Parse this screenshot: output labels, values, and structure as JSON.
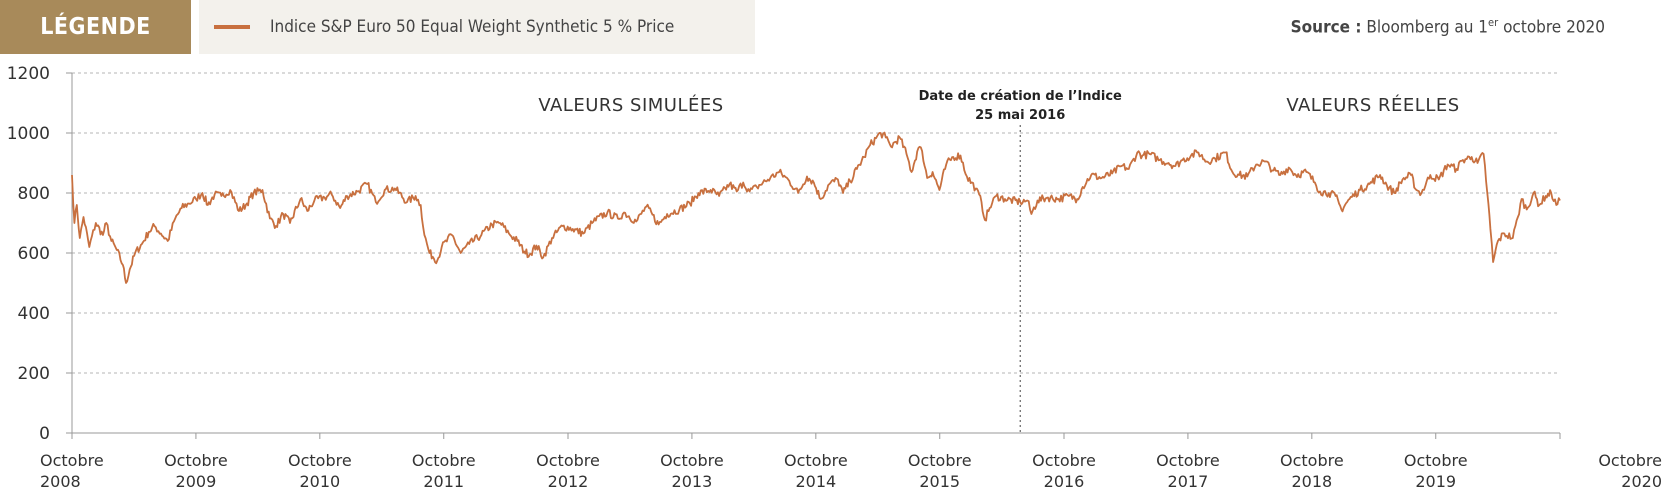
{
  "legend": {
    "tag": "LÉGENDE",
    "series_label": "Indice S&P Euro 50 Equal Weight Synthetic 5 % Price",
    "series_color": "#c8703f",
    "tag_color": "#a88a5a"
  },
  "source": {
    "label": "Source :",
    "text_before_sup": "Bloomberg au 1",
    "sup": "er",
    "text_after_sup": " octobre 2020"
  },
  "chart_data": {
    "type": "line",
    "title": "",
    "xlabel": "",
    "ylabel": "",
    "ylim": [
      0,
      1200
    ],
    "yticks": [
      0,
      200,
      400,
      600,
      800,
      1000,
      1200
    ],
    "xlim": [
      "2008-10-01",
      "2020-10-01"
    ],
    "xtick_labels": [
      {
        "date": "2008-10-01",
        "line1": "Octobre",
        "line2": "2008"
      },
      {
        "date": "2009-10-01",
        "line1": "Octobre",
        "line2": "2009"
      },
      {
        "date": "2010-10-01",
        "line1": "Octobre",
        "line2": "2010"
      },
      {
        "date": "2011-10-01",
        "line1": "Octobre",
        "line2": "2011"
      },
      {
        "date": "2012-10-01",
        "line1": "Octobre",
        "line2": "2012"
      },
      {
        "date": "2013-10-01",
        "line1": "Octobre",
        "line2": "2013"
      },
      {
        "date": "2014-10-01",
        "line1": "Octobre",
        "line2": "2014"
      },
      {
        "date": "2015-10-01",
        "line1": "Octobre",
        "line2": "2015"
      },
      {
        "date": "2016-10-01",
        "line1": "Octobre",
        "line2": "2016"
      },
      {
        "date": "2017-10-01",
        "line1": "Octobre",
        "line2": "2017"
      },
      {
        "date": "2018-10-01",
        "line1": "Octobre",
        "line2": "2018"
      },
      {
        "date": "2019-10-01",
        "line1": "Octobre",
        "line2": "2019"
      },
      {
        "date": "2020-10-01",
        "line1": "Octobre",
        "line2": "2020"
      }
    ],
    "grid": true,
    "annotations": {
      "simulated": "VALEURS SIMULÉES",
      "real": "VALEURS RÉELLES",
      "creation_line1": "Date de création de l’Indice",
      "creation_line2": "25 mai 2016",
      "creation_date": "2016-05-25"
    },
    "series": [
      {
        "name": "Indice S&P Euro 50 Equal Weight Synthetic 5 % Price",
        "color": "#c8703f",
        "points": [
          [
            "2008-10-01",
            860
          ],
          [
            "2008-10-08",
            700
          ],
          [
            "2008-10-15",
            760
          ],
          [
            "2008-10-24",
            650
          ],
          [
            "2008-11-04",
            720
          ],
          [
            "2008-11-21",
            620
          ],
          [
            "2008-12-10",
            700
          ],
          [
            "2008-12-31",
            660
          ],
          [
            "2009-01-10",
            700
          ],
          [
            "2009-01-25",
            640
          ],
          [
            "2009-02-10",
            610
          ],
          [
            "2009-02-28",
            560
          ],
          [
            "2009-03-09",
            500
          ],
          [
            "2009-03-20",
            545
          ],
          [
            "2009-04-05",
            600
          ],
          [
            "2009-04-25",
            630
          ],
          [
            "2009-05-15",
            670
          ],
          [
            "2009-06-01",
            690
          ],
          [
            "2009-06-20",
            665
          ],
          [
            "2009-07-10",
            640
          ],
          [
            "2009-08-01",
            715
          ],
          [
            "2009-08-20",
            750
          ],
          [
            "2009-09-10",
            765
          ],
          [
            "2009-10-01",
            780
          ],
          [
            "2009-10-20",
            800
          ],
          [
            "2009-11-05",
            760
          ],
          [
            "2009-11-25",
            795
          ],
          [
            "2009-12-15",
            790
          ],
          [
            "2010-01-10",
            810
          ],
          [
            "2010-02-05",
            740
          ],
          [
            "2010-02-25",
            760
          ],
          [
            "2010-03-20",
            800
          ],
          [
            "2010-04-15",
            810
          ],
          [
            "2010-05-07",
            715
          ],
          [
            "2010-05-25",
            690
          ],
          [
            "2010-06-15",
            730
          ],
          [
            "2010-07-05",
            700
          ],
          [
            "2010-08-05",
            780
          ],
          [
            "2010-08-25",
            740
          ],
          [
            "2010-09-15",
            775
          ],
          [
            "2010-10-15",
            785
          ],
          [
            "2010-11-05",
            795
          ],
          [
            "2010-11-30",
            750
          ],
          [
            "2010-12-20",
            790
          ],
          [
            "2011-01-20",
            805
          ],
          [
            "2011-02-18",
            830
          ],
          [
            "2011-03-15",
            770
          ],
          [
            "2011-04-10",
            810
          ],
          [
            "2011-05-10",
            815
          ],
          [
            "2011-06-15",
            770
          ],
          [
            "2011-07-10",
            790
          ],
          [
            "2011-07-25",
            760
          ],
          [
            "2011-08-05",
            660
          ],
          [
            "2011-08-20",
            600
          ],
          [
            "2011-09-12",
            575
          ],
          [
            "2011-09-25",
            620
          ],
          [
            "2011-10-25",
            660
          ],
          [
            "2011-11-20",
            600
          ],
          [
            "2011-12-15",
            630
          ],
          [
            "2012-01-20",
            660
          ],
          [
            "2012-02-20",
            695
          ],
          [
            "2012-03-15",
            700
          ],
          [
            "2012-04-10",
            665
          ],
          [
            "2012-05-05",
            640
          ],
          [
            "2012-05-25",
            605
          ],
          [
            "2012-06-10",
            595
          ],
          [
            "2012-06-30",
            625
          ],
          [
            "2012-07-20",
            585
          ],
          [
            "2012-08-15",
            650
          ],
          [
            "2012-09-15",
            690
          ],
          [
            "2012-10-15",
            680
          ],
          [
            "2012-11-15",
            665
          ],
          [
            "2012-12-15",
            705
          ],
          [
            "2013-01-25",
            735
          ],
          [
            "2013-02-25",
            715
          ],
          [
            "2013-03-15",
            735
          ],
          [
            "2013-04-20",
            705
          ],
          [
            "2013-05-20",
            755
          ],
          [
            "2013-06-25",
            695
          ],
          [
            "2013-07-20",
            730
          ],
          [
            "2013-08-25",
            745
          ],
          [
            "2013-09-25",
            765
          ],
          [
            "2013-10-20",
            800
          ],
          [
            "2013-11-25",
            810
          ],
          [
            "2013-12-20",
            790
          ],
          [
            "2014-01-20",
            830
          ],
          [
            "2014-02-10",
            805
          ],
          [
            "2014-03-01",
            835
          ],
          [
            "2014-03-20",
            805
          ],
          [
            "2014-04-10",
            820
          ],
          [
            "2014-05-20",
            850
          ],
          [
            "2014-06-15",
            870
          ],
          [
            "2014-07-15",
            840
          ],
          [
            "2014-08-10",
            800
          ],
          [
            "2014-09-05",
            855
          ],
          [
            "2014-09-25",
            835
          ],
          [
            "2014-10-15",
            780
          ],
          [
            "2014-11-10",
            830
          ],
          [
            "2014-12-05",
            845
          ],
          [
            "2014-12-20",
            800
          ],
          [
            "2015-01-10",
            840
          ],
          [
            "2015-01-30",
            880
          ],
          [
            "2015-02-20",
            920
          ],
          [
            "2015-03-10",
            960
          ],
          [
            "2015-04-10",
            1000
          ],
          [
            "2015-04-25",
            985
          ],
          [
            "2015-05-10",
            955
          ],
          [
            "2015-06-05",
            985
          ],
          [
            "2015-06-25",
            930
          ],
          [
            "2015-07-10",
            870
          ],
          [
            "2015-07-30",
            950
          ],
          [
            "2015-08-10",
            940
          ],
          [
            "2015-08-25",
            850
          ],
          [
            "2015-09-10",
            870
          ],
          [
            "2015-09-30",
            810
          ],
          [
            "2015-10-20",
            895
          ],
          [
            "2015-11-10",
            920
          ],
          [
            "2015-12-01",
            925
          ],
          [
            "2015-12-20",
            855
          ],
          [
            "2016-01-15",
            815
          ],
          [
            "2016-02-01",
            770
          ],
          [
            "2016-02-11",
            710
          ],
          [
            "2016-02-25",
            750
          ],
          [
            "2016-03-15",
            790
          ],
          [
            "2016-04-10",
            780
          ],
          [
            "2016-05-25",
            770
          ],
          [
            "2016-06-15",
            775
          ],
          [
            "2016-06-27",
            730
          ],
          [
            "2016-07-15",
            775
          ],
          [
            "2016-08-15",
            785
          ],
          [
            "2016-09-15",
            780
          ],
          [
            "2016-10-15",
            790
          ],
          [
            "2016-11-09",
            780
          ],
          [
            "2016-11-25",
            820
          ],
          [
            "2016-12-20",
            860
          ],
          [
            "2017-01-20",
            850
          ],
          [
            "2017-02-20",
            865
          ],
          [
            "2017-03-20",
            890
          ],
          [
            "2017-04-10",
            880
          ],
          [
            "2017-05-05",
            935
          ],
          [
            "2017-05-20",
            925
          ],
          [
            "2017-06-10",
            930
          ],
          [
            "2017-07-10",
            910
          ],
          [
            "2017-08-05",
            900
          ],
          [
            "2017-08-25",
            890
          ],
          [
            "2017-09-15",
            910
          ],
          [
            "2017-10-10",
            925
          ],
          [
            "2017-11-01",
            935
          ],
          [
            "2017-11-25",
            905
          ],
          [
            "2017-12-20",
            915
          ],
          [
            "2018-01-20",
            935
          ],
          [
            "2018-02-09",
            870
          ],
          [
            "2018-03-01",
            860
          ],
          [
            "2018-03-25",
            855
          ],
          [
            "2018-04-20",
            895
          ],
          [
            "2018-05-15",
            905
          ],
          [
            "2018-06-10",
            875
          ],
          [
            "2018-06-30",
            860
          ],
          [
            "2018-07-25",
            885
          ],
          [
            "2018-08-15",
            860
          ],
          [
            "2018-09-15",
            870
          ],
          [
            "2018-10-10",
            835
          ],
          [
            "2018-10-25",
            805
          ],
          [
            "2018-11-20",
            800
          ],
          [
            "2018-12-10",
            790
          ],
          [
            "2018-12-27",
            745
          ],
          [
            "2019-01-20",
            780
          ],
          [
            "2019-02-20",
            810
          ],
          [
            "2019-03-20",
            830
          ],
          [
            "2019-04-20",
            860
          ],
          [
            "2019-05-10",
            825
          ],
          [
            "2019-06-01",
            800
          ],
          [
            "2019-06-25",
            845
          ],
          [
            "2019-07-20",
            860
          ],
          [
            "2019-08-05",
            810
          ],
          [
            "2019-08-20",
            800
          ],
          [
            "2019-09-15",
            860
          ],
          [
            "2019-10-10",
            845
          ],
          [
            "2019-11-05",
            895
          ],
          [
            "2019-12-01",
            880
          ],
          [
            "2019-12-20",
            910
          ],
          [
            "2020-01-15",
            920
          ],
          [
            "2020-02-01",
            900
          ],
          [
            "2020-02-19",
            930
          ],
          [
            "2020-03-01",
            800
          ],
          [
            "2020-03-10",
            680
          ],
          [
            "2020-03-18",
            570
          ],
          [
            "2020-04-01",
            640
          ],
          [
            "2020-04-20",
            665
          ],
          [
            "2020-05-15",
            650
          ],
          [
            "2020-05-30",
            720
          ],
          [
            "2020-06-10",
            780
          ],
          [
            "2020-06-25",
            745
          ],
          [
            "2020-07-15",
            800
          ],
          [
            "2020-08-01",
            760
          ],
          [
            "2020-08-20",
            790
          ],
          [
            "2020-09-05",
            800
          ],
          [
            "2020-09-20",
            760
          ],
          [
            "2020-10-01",
            775
          ]
        ]
      }
    ]
  }
}
